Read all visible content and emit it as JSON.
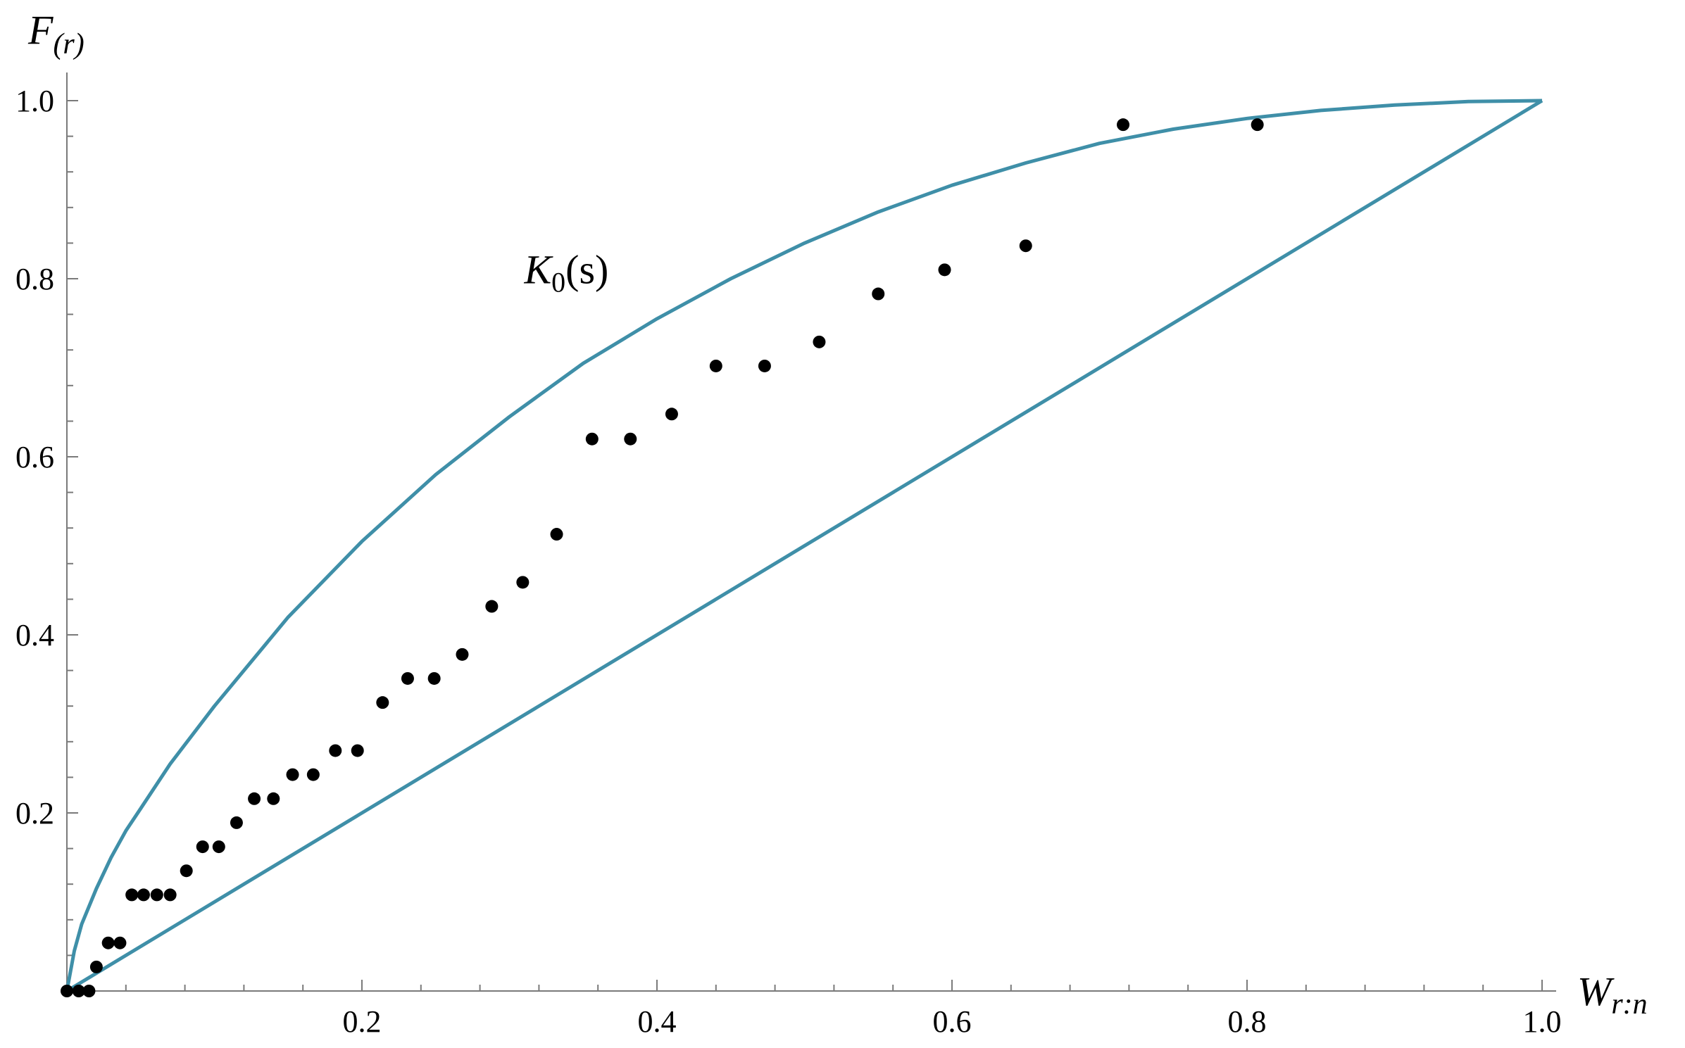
{
  "chart_data": {
    "type": "scatter",
    "xlabel": "W",
    "xlabel_sub": "r:n",
    "ylabel": "F",
    "ylabel_sub": "(r)",
    "xlim": [
      0,
      1.0
    ],
    "ylim": [
      0,
      1.0
    ],
    "xticks": [
      {
        "value": 0.2,
        "label": "0.2"
      },
      {
        "value": 0.4,
        "label": "0.4"
      },
      {
        "value": 0.6,
        "label": "0.6"
      },
      {
        "value": 0.8,
        "label": "0.8"
      },
      {
        "value": 1.0,
        "label": "1.0"
      }
    ],
    "yticks": [
      {
        "value": 0.2,
        "label": "0.2"
      },
      {
        "value": 0.4,
        "label": "0.4"
      },
      {
        "value": 0.6,
        "label": "0.6"
      },
      {
        "value": 0.8,
        "label": "0.8"
      },
      {
        "value": 1.0,
        "label": "1.0"
      }
    ],
    "grid": false,
    "curve_color": "#3f8fa8",
    "point_color": "#000000",
    "annotation": {
      "text": "K",
      "sub": "0",
      "suffix": "(s)",
      "x": 0.31,
      "y": 0.795
    },
    "curves": [
      {
        "kind": "upper",
        "points": [
          [
            0,
            0
          ],
          [
            0.005,
            0.045
          ],
          [
            0.01,
            0.075
          ],
          [
            0.02,
            0.115
          ],
          [
            0.03,
            0.15
          ],
          [
            0.04,
            0.18
          ],
          [
            0.05,
            0.205
          ],
          [
            0.07,
            0.255
          ],
          [
            0.1,
            0.32
          ],
          [
            0.15,
            0.42
          ],
          [
            0.2,
            0.505
          ],
          [
            0.25,
            0.58
          ],
          [
            0.3,
            0.645
          ],
          [
            0.35,
            0.705
          ],
          [
            0.4,
            0.755
          ],
          [
            0.45,
            0.8
          ],
          [
            0.5,
            0.84
          ],
          [
            0.55,
            0.875
          ],
          [
            0.6,
            0.905
          ],
          [
            0.65,
            0.93
          ],
          [
            0.7,
            0.952
          ],
          [
            0.75,
            0.968
          ],
          [
            0.8,
            0.98
          ],
          [
            0.85,
            0.989
          ],
          [
            0.9,
            0.995
          ],
          [
            0.95,
            0.999
          ],
          [
            1.0,
            1.0
          ]
        ]
      },
      {
        "kind": "lower",
        "points": [
          [
            0,
            0
          ],
          [
            1.0,
            1.0
          ]
        ]
      }
    ],
    "points": [
      [
        0.0,
        0.0
      ],
      [
        0.008,
        0.0
      ],
      [
        0.015,
        0.0
      ],
      [
        0.02,
        0.027
      ],
      [
        0.028,
        0.054
      ],
      [
        0.036,
        0.054
      ],
      [
        0.044,
        0.108
      ],
      [
        0.052,
        0.108
      ],
      [
        0.061,
        0.108
      ],
      [
        0.07,
        0.108
      ],
      [
        0.081,
        0.135
      ],
      [
        0.092,
        0.162
      ],
      [
        0.103,
        0.162
      ],
      [
        0.115,
        0.189
      ],
      [
        0.127,
        0.216
      ],
      [
        0.14,
        0.216
      ],
      [
        0.153,
        0.243
      ],
      [
        0.167,
        0.243
      ],
      [
        0.182,
        0.27
      ],
      [
        0.197,
        0.27
      ],
      [
        0.214,
        0.324
      ],
      [
        0.231,
        0.351
      ],
      [
        0.249,
        0.351
      ],
      [
        0.268,
        0.378
      ],
      [
        0.288,
        0.432
      ],
      [
        0.309,
        0.459
      ],
      [
        0.332,
        0.513
      ],
      [
        0.356,
        0.62
      ],
      [
        0.382,
        0.62
      ],
      [
        0.41,
        0.648
      ],
      [
        0.44,
        0.702
      ],
      [
        0.473,
        0.702
      ],
      [
        0.51,
        0.729
      ],
      [
        0.55,
        0.783
      ],
      [
        0.595,
        0.81
      ],
      [
        0.65,
        0.837
      ],
      [
        0.716,
        0.973
      ],
      [
        0.807,
        0.973
      ]
    ]
  }
}
